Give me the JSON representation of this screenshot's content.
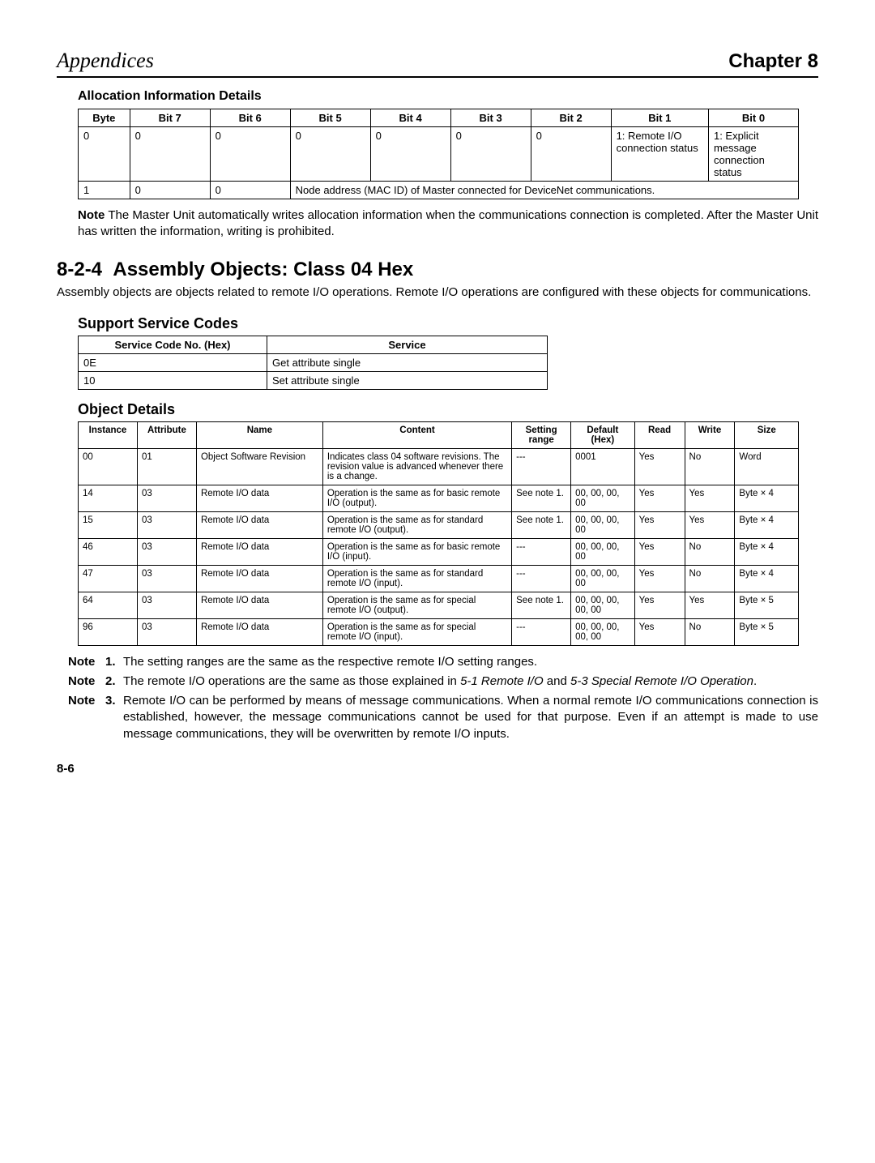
{
  "header": {
    "left": "Appendices",
    "right": "Chapter 8"
  },
  "alloc": {
    "title": "Allocation Information Details",
    "columns": [
      "Byte",
      "Bit 7",
      "Bit 6",
      "Bit 5",
      "Bit 4",
      "Bit 3",
      "Bit 2",
      "Bit 1",
      "Bit 0"
    ],
    "row0": {
      "byte": "0",
      "b7": "0",
      "b6": "0",
      "b5": "0",
      "b4": "0",
      "b3": "0",
      "b2": "0",
      "b1": "1: Remote I/O connection status",
      "b0": "1: Explicit message connection status"
    },
    "row1": {
      "byte": "1",
      "b7": "0",
      "b6": "0",
      "span": "Node address (MAC ID) of Master connected for DeviceNet communications."
    },
    "note_label": "Note",
    "note": "The Master Unit automatically writes allocation information when the communications connection is completed. After the Master Unit has written the information, writing is prohibited."
  },
  "section": {
    "num": "8-2-4",
    "title": "Assembly Objects: Class 04 Hex",
    "body": "Assembly objects are objects related to remote I/O operations. Remote I/O operations are configured with these objects for communications."
  },
  "service": {
    "heading": "Support Service Codes",
    "columns": [
      "Service Code No. (Hex)",
      "Service"
    ],
    "rows": [
      {
        "code": "0E",
        "svc": "Get attribute single"
      },
      {
        "code": "10",
        "svc": "Set attribute single"
      }
    ]
  },
  "object": {
    "heading": "Object Details",
    "columns": [
      "Instance",
      "Attribute",
      "Name",
      "Content",
      "Setting range",
      "Default (Hex)",
      "Read",
      "Write",
      "Size"
    ],
    "rows": [
      {
        "inst": "00",
        "attr": "01",
        "name": "Object Software Revision",
        "content": "Indicates class 04 software revisions. The revision value is advanced whenever there is a change.",
        "range": "---",
        "def": "0001",
        "read": "Yes",
        "write": "No",
        "size": "Word"
      },
      {
        "inst": "14",
        "attr": "03",
        "name": "Remote I/O data",
        "content": "Operation is the same as for basic remote I/O (output).",
        "range": "See note 1.",
        "def": "00, 00, 00, 00",
        "read": "Yes",
        "write": "Yes",
        "size": "Byte × 4"
      },
      {
        "inst": "15",
        "attr": "03",
        "name": "Remote I/O data",
        "content": "Operation is the same as for standard remote I/O (output).",
        "range": "See note 1.",
        "def": "00, 00, 00, 00",
        "read": "Yes",
        "write": "Yes",
        "size": "Byte × 4"
      },
      {
        "inst": "46",
        "attr": "03",
        "name": "Remote I/O data",
        "content": "Operation is the same as for basic remote I/O (input).",
        "range": "---",
        "def": "00, 00, 00, 00",
        "read": "Yes",
        "write": "No",
        "size": "Byte × 4"
      },
      {
        "inst": "47",
        "attr": "03",
        "name": "Remote I/O data",
        "content": "Operation is the same as for standard remote I/O (input).",
        "range": "---",
        "def": "00, 00, 00, 00",
        "read": "Yes",
        "write": "No",
        "size": "Byte × 4"
      },
      {
        "inst": "64",
        "attr": "03",
        "name": "Remote I/O data",
        "content": "Operation is the same as for special remote I/O (output).",
        "range": "See note 1.",
        "def": "00, 00, 00, 00, 00",
        "read": "Yes",
        "write": "Yes",
        "size": "Byte × 5"
      },
      {
        "inst": "96",
        "attr": "03",
        "name": "Remote I/O data",
        "content": "Operation is the same as for special remote I/O (input).",
        "range": "---",
        "def": "00, 00, 00, 00, 00",
        "read": "Yes",
        "write": "No",
        "size": "Byte × 5"
      }
    ]
  },
  "notes": {
    "label": "Note",
    "items": [
      {
        "n": "1.",
        "text": "The setting ranges are the same as the respective remote I/O setting ranges."
      },
      {
        "n": "2.",
        "text": "The remote I/O operations are the same as those explained in ",
        "em1": "5-1 Remote I/O",
        "mid": " and ",
        "em2": "5-3 Special Remote I/O Operation",
        "tail": "."
      },
      {
        "n": "3.",
        "text": "Remote I/O can be performed by means of message communications. When a normal remote I/O communications connection is established, however, the message communications cannot be used for that purpose. Even if an attempt is made to use message communications, they will be overwritten by remote I/O inputs."
      }
    ]
  },
  "page": "8-6"
}
